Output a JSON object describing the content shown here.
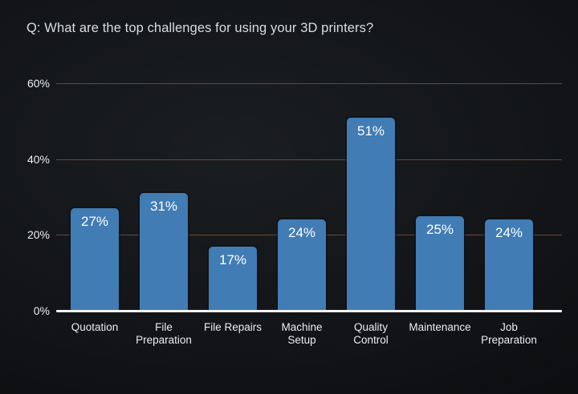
{
  "chart_data": {
    "type": "bar",
    "title": "Q: What are the top challenges for using your 3D printers?",
    "categories": [
      "Quotation",
      "File\nPreparation",
      "File Repairs",
      "Machine\nSetup",
      "Quality\nControl",
      "Maintenance",
      "Job\nPreparation"
    ],
    "values": [
      27,
      31,
      17,
      24,
      51,
      25,
      24
    ],
    "value_labels": [
      "27%",
      "31%",
      "17%",
      "24%",
      "51%",
      "25%",
      "24%"
    ],
    "y_tick_values": [
      0,
      20,
      40,
      60
    ],
    "y_tick_labels": [
      "0%",
      "20%",
      "40%",
      "60%"
    ],
    "ylim": [
      0,
      60
    ],
    "grid": true,
    "legend": "none",
    "value_labels_position": "inside-top",
    "colors": {
      "bar": "#417cb4",
      "gridline": "#6e4731",
      "axis": "#f3f3f3",
      "text": "#ebedee",
      "value_label": "#ffffff",
      "title": "#d9dde2",
      "background_center": "#1b1e21",
      "background_edge": "#090a0c"
    }
  }
}
